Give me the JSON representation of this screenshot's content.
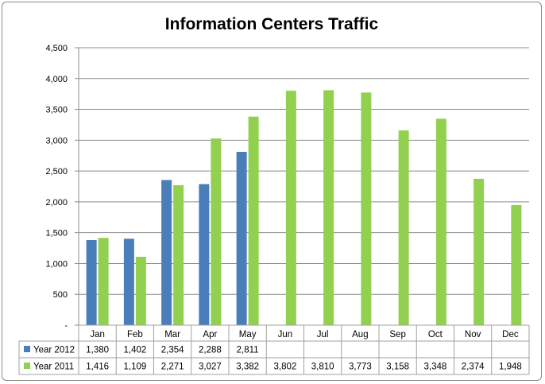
{
  "chart_data": {
    "type": "bar",
    "title": "Information Centers Traffic",
    "xlabel": "",
    "ylabel": "",
    "ylim": [
      0,
      4500
    ],
    "yticks": [
      0,
      500,
      1000,
      1500,
      2000,
      2500,
      3000,
      3500,
      4000,
      4500
    ],
    "ytick_labels": [
      "-",
      "500",
      "1,000",
      "1,500",
      "2,000",
      "2,500",
      "3,000",
      "3,500",
      "4,000",
      "4,500"
    ],
    "grid": true,
    "legend": "data-table",
    "categories": [
      "Jan",
      "Feb",
      "Mar",
      "Apr",
      "May",
      "Jun",
      "Jul",
      "Aug",
      "Sep",
      "Oct",
      "Nov",
      "Dec"
    ],
    "series": [
      {
        "name": "Year 2012",
        "color": "#4a7ebb",
        "values": [
          1380,
          1402,
          2354,
          2288,
          2811,
          null,
          null,
          null,
          null,
          null,
          null,
          null
        ],
        "labels": [
          "1,380",
          "1,402",
          "2,354",
          "2,288",
          "2,811",
          "",
          "",
          "",
          "",
          "",
          "",
          ""
        ]
      },
      {
        "name": "Year 2011",
        "color": "#92d050",
        "values": [
          1416,
          1109,
          2271,
          3027,
          3382,
          3802,
          3810,
          3773,
          3158,
          3348,
          2374,
          1948
        ],
        "labels": [
          "1,416",
          "1,109",
          "2,271",
          "3,027",
          "3,382",
          "3,802",
          "3,810",
          "3,773",
          "3,158",
          "3,348",
          "2,374",
          "1,948"
        ]
      }
    ]
  }
}
